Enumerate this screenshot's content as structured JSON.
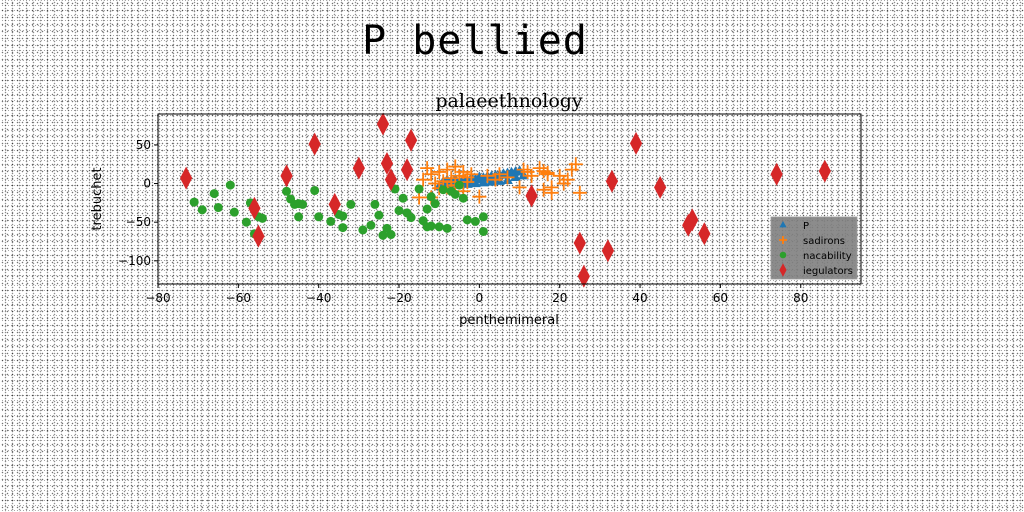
{
  "figure": {
    "suptitle": "P bellied"
  },
  "chart_data": {
    "type": "scatter",
    "title": "palaeethnology",
    "xlabel": "penthemimeral",
    "ylabel": "trebuchet",
    "xlim": [
      -80,
      95
    ],
    "ylim": [
      -130,
      90
    ],
    "xticks": [
      -80,
      -60,
      -40,
      -20,
      0,
      20,
      40,
      60,
      80
    ],
    "yticks": [
      50,
      0,
      -50,
      -100
    ],
    "grid": false,
    "legend_position": "lower right",
    "series": [
      {
        "name": "P",
        "marker": "triangle",
        "color": "#1f77b4",
        "x": [
          -10,
          -9,
          -8,
          -7,
          -6,
          -5,
          -4,
          -3,
          -2,
          -1,
          0,
          1,
          2,
          3,
          4,
          5,
          6,
          7,
          8,
          9,
          10,
          -8,
          -6,
          -4,
          -2,
          0,
          2,
          4,
          6,
          8,
          -5,
          -3,
          -1,
          1,
          3,
          5,
          7,
          -9,
          -7,
          9,
          11
        ],
        "y": [
          -4,
          -3,
          -2,
          -1,
          0,
          1,
          2,
          3,
          4,
          5,
          6,
          7,
          8,
          9,
          10,
          11,
          12,
          13,
          14,
          15,
          16,
          4,
          5,
          6,
          7,
          8,
          9,
          10,
          11,
          12,
          -2,
          -1,
          0,
          1,
          2,
          3,
          4,
          2,
          3,
          8,
          10
        ]
      },
      {
        "name": "sadirons",
        "marker": "plus",
        "color": "#ff7f0e",
        "x": [
          -14,
          -13,
          -12,
          -12,
          -11,
          -10,
          -10,
          -9,
          -8,
          -8,
          -7,
          -6,
          -6,
          -5,
          -4,
          -4,
          -3,
          -2,
          0,
          2,
          5,
          7,
          11,
          12,
          15,
          16,
          17,
          18,
          20,
          21,
          22,
          23,
          24,
          25,
          16,
          17,
          18,
          -15,
          13,
          -7,
          -3,
          4,
          10
        ],
        "y": [
          5,
          20,
          -18,
          12,
          0,
          15,
          -6,
          3,
          18,
          -5,
          7,
          22,
          -2,
          10,
          15,
          -10,
          2,
          12,
          -17,
          10,
          12,
          8,
          18,
          15,
          20,
          -8,
          14,
          -12,
          10,
          0,
          5,
          18,
          25,
          -12,
          16,
          12,
          -5,
          -18,
          10,
          2,
          8,
          5,
          -5
        ]
      },
      {
        "name": "nacability",
        "marker": "circle",
        "color": "#2ca02c",
        "x": [
          -71,
          -69,
          -66,
          -65,
          -62,
          -61,
          -58,
          -57,
          -56,
          -55,
          -54,
          -48,
          -47,
          -46,
          -45,
          -45,
          -44,
          -41,
          -40,
          -37,
          -35,
          -34,
          -34,
          -32,
          -29,
          -27,
          -26,
          -25,
          -24,
          -23,
          -22,
          -21,
          -20,
          -19,
          -18,
          -17,
          -15,
          -14,
          -13,
          -13,
          -12,
          -12,
          -11,
          -10,
          -9,
          -8,
          -7,
          -6,
          -5,
          -4,
          -3,
          -1,
          1,
          1
        ],
        "y": [
          -24,
          -34,
          -13,
          -31,
          -2,
          -37,
          -50,
          -25,
          -65,
          -43,
          -45,
          -10,
          -20,
          -27,
          -43,
          -26,
          -27,
          -9,
          -43,
          -49,
          -40,
          -57,
          -42,
          -27,
          -60,
          -54,
          -27,
          -41,
          -67,
          -58,
          -66,
          -7,
          -35,
          -19,
          -38,
          -44,
          -7,
          -48,
          -56,
          -33,
          -17,
          -55,
          -26,
          -56,
          -8,
          -58,
          -10,
          -14,
          -2,
          -19,
          -47,
          -49,
          -43,
          -62
        ]
      },
      {
        "name": "iegulators",
        "marker": "diamond",
        "color": "#d62728",
        "x": [
          -73,
          -56,
          -55,
          -48,
          -41,
          -36,
          -30,
          -24,
          -23,
          -22,
          -18,
          -17,
          13,
          25,
          26,
          32,
          33,
          39,
          45,
          52,
          53,
          56,
          74,
          86
        ],
        "y": [
          7,
          -32,
          -68,
          10,
          51,
          -27,
          20,
          77,
          26,
          5,
          18,
          56,
          -16,
          -77,
          -120,
          -87,
          3,
          52,
          -5,
          -54,
          -47,
          -65,
          12,
          16
        ]
      }
    ]
  }
}
